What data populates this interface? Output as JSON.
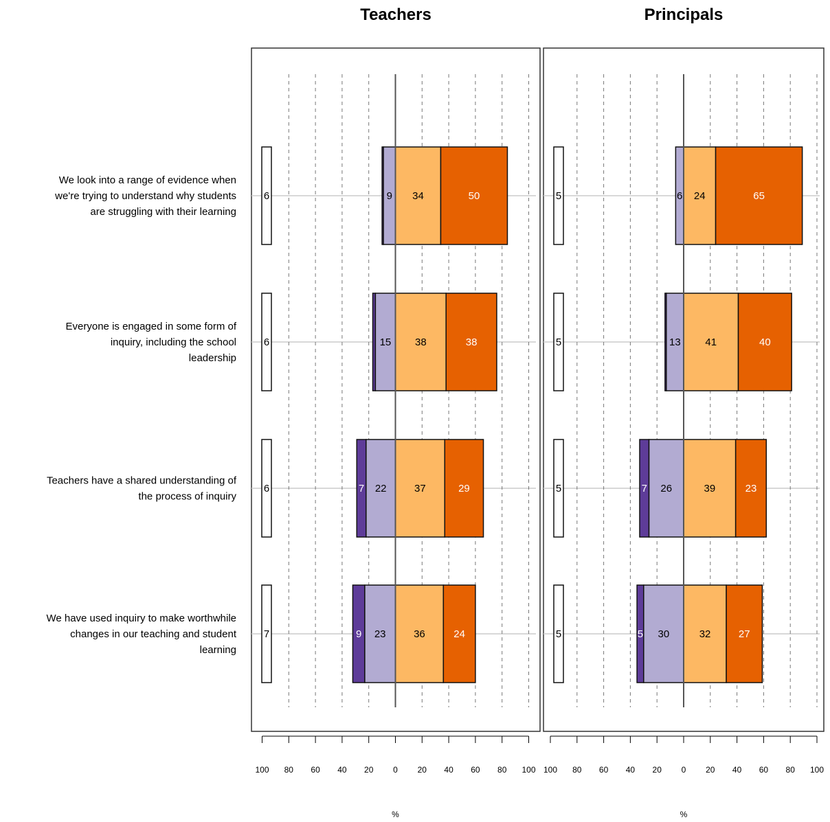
{
  "chart_data": {
    "type": "bar",
    "subtype": "diverging stacked horizontal bar (Likert)",
    "categories": [
      "We look into a range of evidence when we're trying to understand why students are struggling with their learning",
      "Everyone is engaged in some form of inquiry, including the school leadership",
      "Teachers have a shared understanding of the process of inquiry",
      "We have used inquiry to make worthwhile changes in our teaching and student learning"
    ],
    "category_lines": [
      [
        "We look into a range of evidence when",
        "we're trying to understand why students",
        "are struggling with their learning"
      ],
      [
        "Everyone is engaged in some form of",
        "inquiry, including the school",
        "leadership"
      ],
      [
        "Teachers have a shared understanding of",
        "the process of inquiry"
      ],
      [
        "We have used inquiry to make worthwhile",
        "changes in our teaching and student",
        "learning"
      ]
    ],
    "panels": [
      {
        "title": "Teachers",
        "xlabel": "%",
        "series": [
          {
            "color": "#5e3c99",
            "values": [
              1,
              2,
              7,
              9
            ]
          },
          {
            "color": "#b2abd2",
            "values": [
              9,
              15,
              22,
              23
            ]
          },
          {
            "color": "#fdb863",
            "values": [
              34,
              38,
              37,
              36
            ]
          },
          {
            "color": "#e66101",
            "values": [
              50,
              38,
              29,
              24
            ]
          },
          {
            "color": "#ffffff",
            "values": [
              6,
              6,
              6,
              7
            ]
          }
        ]
      },
      {
        "title": "Principals",
        "xlabel": "%",
        "series": [
          {
            "color": "#5e3c99",
            "values": [
              0,
              1,
              7,
              5
            ]
          },
          {
            "color": "#b2abd2",
            "values": [
              6,
              13,
              26,
              30
            ]
          },
          {
            "color": "#fdb863",
            "values": [
              24,
              41,
              39,
              32
            ]
          },
          {
            "color": "#e66101",
            "values": [
              65,
              40,
              23,
              27
            ]
          },
          {
            "color": "#ffffff",
            "values": [
              5,
              5,
              5,
              5
            ]
          }
        ]
      }
    ],
    "value_labels": {
      "Teachers": [
        [
          null,
          "9",
          "34",
          "50",
          "6"
        ],
        [
          null,
          "15",
          "38",
          "38",
          "6"
        ],
        [
          "7",
          "22",
          "37",
          "29",
          "6"
        ],
        [
          "9",
          "23",
          "36",
          "24",
          "7"
        ]
      ],
      "Principals": [
        [
          null,
          "6",
          "24",
          "65",
          "5"
        ],
        [
          null,
          "13",
          "41",
          "40",
          "5"
        ],
        [
          "7",
          "26",
          "39",
          "23",
          "5"
        ],
        [
          "5",
          "30",
          "32",
          "27",
          "5"
        ]
      ]
    },
    "xlim": [
      -100,
      100
    ],
    "xticks": [
      -100,
      -80,
      -60,
      -40,
      -20,
      0,
      20,
      40,
      60,
      80,
      100
    ],
    "xtick_labels": [
      "100",
      "80",
      "60",
      "40",
      "20",
      "0",
      "20",
      "40",
      "60",
      "80",
      "100"
    ],
    "grid": "dashed vertical"
  }
}
